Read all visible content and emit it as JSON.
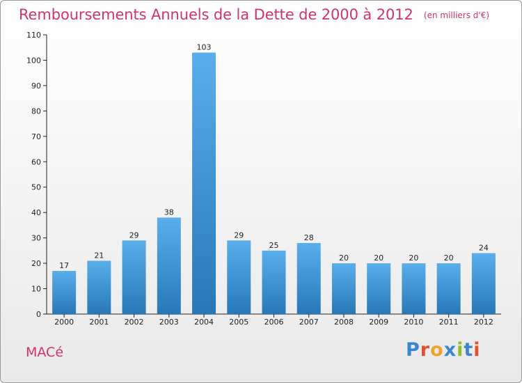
{
  "header": {
    "title": "Remboursements Annuels de la Dette de 2000 à 2012",
    "unit_note": "(en milliers d'€)"
  },
  "footer": {
    "commune": "MACé",
    "brand": "Proxiti"
  },
  "colors": {
    "title": "#d2336a",
    "bar_light": "#5aaeea",
    "bar_dark": "#2878b8",
    "axis": "#222222",
    "logo_letters": [
      "#3a86cf",
      "#e2502c",
      "#f0a32a",
      "#3a86cf",
      "#8cbf26",
      "#3a86cf",
      "#e2502c"
    ]
  },
  "chart_data": {
    "type": "bar",
    "categories": [
      "2000",
      "2001",
      "2002",
      "2003",
      "2004",
      "2005",
      "2006",
      "2007",
      "2008",
      "2009",
      "2010",
      "2011",
      "2012"
    ],
    "values": [
      17,
      21,
      29,
      38,
      103,
      29,
      25,
      28,
      20,
      20,
      20,
      20,
      24
    ],
    "ylim": [
      0,
      110
    ],
    "yticks": [
      0,
      10,
      20,
      30,
      40,
      50,
      60,
      70,
      80,
      90,
      100,
      110
    ],
    "data_labels": true,
    "grid": false,
    "legend": "none"
  }
}
